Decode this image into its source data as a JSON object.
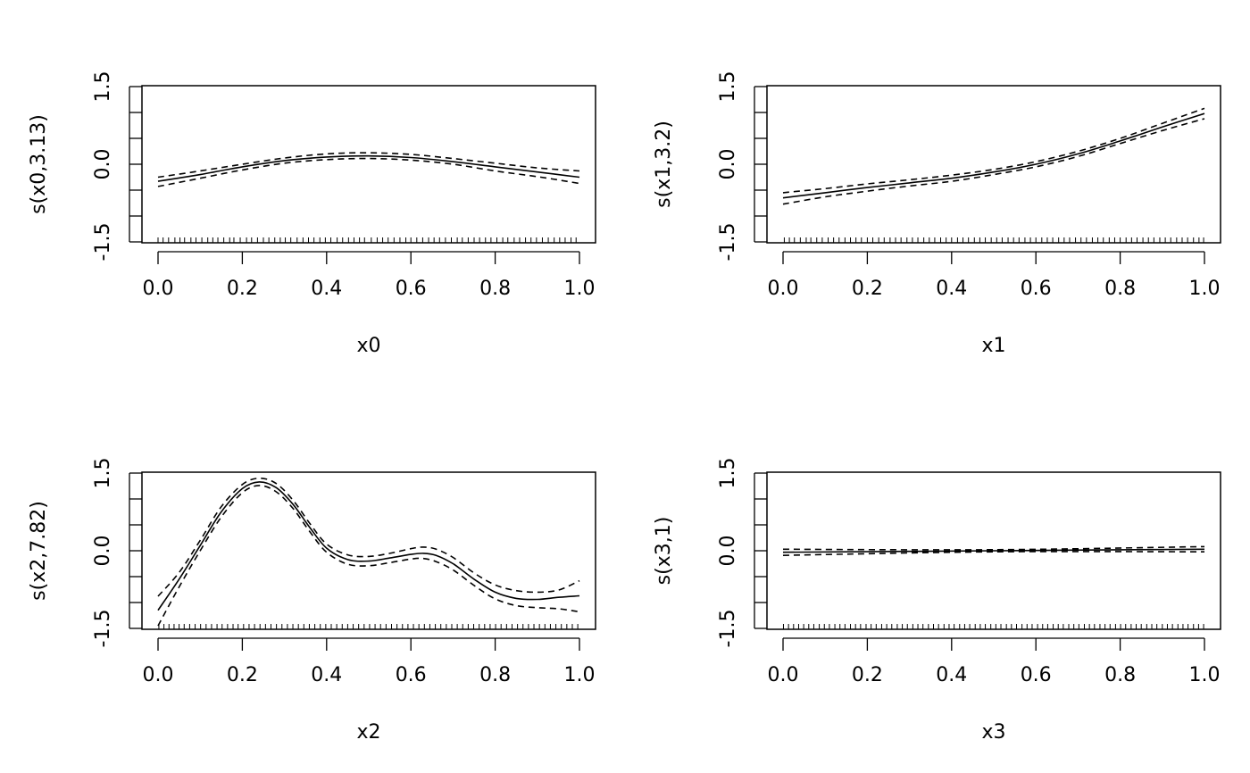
{
  "chart_data": [
    {
      "type": "line",
      "xlabel": "x0",
      "ylabel": "s(x0,3.13)",
      "xlim": [
        0.0,
        1.0
      ],
      "ylim": [
        -1.5,
        1.5
      ],
      "xticks": [
        "0.0",
        "0.2",
        "0.4",
        "0.6",
        "0.8",
        "1.0"
      ],
      "yticks": [
        "-1.5",
        "0.0",
        "1.5"
      ],
      "grid": false,
      "x": [
        0.0,
        0.1,
        0.2,
        0.3,
        0.4,
        0.5,
        0.6,
        0.7,
        0.8,
        0.9,
        1.0
      ],
      "series": [
        {
          "style": "solid",
          "values": [
            -0.33,
            -0.2,
            -0.05,
            0.07,
            0.14,
            0.16,
            0.13,
            0.05,
            -0.05,
            -0.15,
            -0.25
          ]
        },
        {
          "style": "dashed",
          "values": [
            -0.25,
            -0.13,
            0.0,
            0.12,
            0.2,
            0.22,
            0.19,
            0.11,
            0.02,
            -0.07,
            -0.13
          ]
        },
        {
          "style": "dashed",
          "values": [
            -0.43,
            -0.27,
            -0.11,
            0.02,
            0.09,
            0.11,
            0.08,
            0.0,
            -0.13,
            -0.24,
            -0.37
          ]
        }
      ],
      "rug": [
        0.0,
        0.012,
        0.025,
        0.04,
        0.052,
        0.063,
        0.078,
        0.09,
        0.104,
        0.118,
        0.13,
        0.142,
        0.156,
        0.17,
        0.18,
        0.195,
        0.21,
        0.222,
        0.236,
        0.25,
        0.263,
        0.277,
        0.29,
        0.302,
        0.315,
        0.33,
        0.344,
        0.357,
        0.37,
        0.384,
        0.397,
        0.41,
        0.425,
        0.438,
        0.452,
        0.465,
        0.478,
        0.49,
        0.506,
        0.52,
        0.533,
        0.546,
        0.56,
        0.574,
        0.588,
        0.6,
        0.614,
        0.628,
        0.642,
        0.655,
        0.668,
        0.682,
        0.696,
        0.71,
        0.722,
        0.736,
        0.75,
        0.763,
        0.777,
        0.79,
        0.804,
        0.818,
        0.83,
        0.845,
        0.858,
        0.872,
        0.885,
        0.898,
        0.912,
        0.926,
        0.94,
        0.953,
        0.966,
        0.98,
        0.992
      ]
    },
    {
      "type": "line",
      "xlabel": "x1",
      "ylabel": "s(x1,3.2)",
      "xlim": [
        0.0,
        1.0
      ],
      "ylim": [
        -1.5,
        1.5
      ],
      "xticks": [
        "0.0",
        "0.2",
        "0.4",
        "0.6",
        "0.8",
        "1.0"
      ],
      "yticks": [
        "-1.5",
        "0.0",
        "1.5"
      ],
      "grid": false,
      "x": [
        0.0,
        0.1,
        0.2,
        0.3,
        0.4,
        0.5,
        0.6,
        0.7,
        0.8,
        0.9,
        1.0
      ],
      "series": [
        {
          "style": "solid",
          "values": [
            -0.65,
            -0.55,
            -0.45,
            -0.36,
            -0.27,
            -0.15,
            0.0,
            0.2,
            0.45,
            0.72,
            0.98
          ]
        },
        {
          "style": "dashed",
          "values": [
            -0.55,
            -0.47,
            -0.38,
            -0.3,
            -0.21,
            -0.1,
            0.05,
            0.25,
            0.5,
            0.79,
            1.08
          ]
        },
        {
          "style": "dashed",
          "values": [
            -0.77,
            -0.63,
            -0.52,
            -0.42,
            -0.33,
            -0.2,
            -0.05,
            0.15,
            0.4,
            0.65,
            0.88
          ]
        }
      ],
      "rug": [
        0.003,
        0.015,
        0.027,
        0.041,
        0.055,
        0.066,
        0.08,
        0.093,
        0.107,
        0.12,
        0.133,
        0.147,
        0.16,
        0.173,
        0.186,
        0.2,
        0.213,
        0.227,
        0.24,
        0.254,
        0.267,
        0.28,
        0.294,
        0.307,
        0.32,
        0.334,
        0.347,
        0.36,
        0.374,
        0.387,
        0.4,
        0.414,
        0.427,
        0.44,
        0.454,
        0.467,
        0.48,
        0.494,
        0.507,
        0.52,
        0.534,
        0.547,
        0.56,
        0.574,
        0.587,
        0.6,
        0.614,
        0.627,
        0.64,
        0.654,
        0.667,
        0.68,
        0.694,
        0.707,
        0.72,
        0.734,
        0.747,
        0.76,
        0.774,
        0.787,
        0.8,
        0.814,
        0.827,
        0.84,
        0.854,
        0.867,
        0.88,
        0.894,
        0.907,
        0.92,
        0.934,
        0.947,
        0.96,
        0.974,
        0.987,
        0.998
      ]
    },
    {
      "type": "line",
      "xlabel": "x2",
      "ylabel": "s(x2,7.82)",
      "xlim": [
        0.0,
        1.0
      ],
      "ylim": [
        -1.5,
        1.5
      ],
      "xticks": [
        "0.0",
        "0.2",
        "0.4",
        "0.6",
        "0.8",
        "1.0"
      ],
      "yticks": [
        "-1.5",
        "0.0",
        "1.5"
      ],
      "grid": false,
      "x": [
        0.0,
        0.05,
        0.1,
        0.15,
        0.2,
        0.24,
        0.28,
        0.32,
        0.36,
        0.4,
        0.45,
        0.5,
        0.55,
        0.6,
        0.63,
        0.66,
        0.7,
        0.75,
        0.8,
        0.85,
        0.9,
        0.95,
        1.0
      ],
      "series": [
        {
          "style": "solid",
          "values": [
            -1.15,
            -0.55,
            0.1,
            0.75,
            1.2,
            1.33,
            1.22,
            0.9,
            0.45,
            0.05,
            -0.17,
            -0.2,
            -0.14,
            -0.07,
            -0.05,
            -0.09,
            -0.25,
            -0.55,
            -0.8,
            -0.92,
            -0.94,
            -0.9,
            -0.87
          ]
        },
        {
          "style": "dashed",
          "values": [
            -0.88,
            -0.42,
            0.2,
            0.85,
            1.28,
            1.4,
            1.3,
            0.98,
            0.53,
            0.13,
            -0.08,
            -0.11,
            -0.05,
            0.04,
            0.07,
            0.03,
            -0.13,
            -0.43,
            -0.66,
            -0.77,
            -0.8,
            -0.76,
            -0.58
          ]
        },
        {
          "style": "dashed",
          "values": [
            -1.45,
            -0.7,
            0.0,
            0.65,
            1.12,
            1.26,
            1.14,
            0.82,
            0.37,
            -0.03,
            -0.26,
            -0.29,
            -0.23,
            -0.16,
            -0.15,
            -0.21,
            -0.37,
            -0.67,
            -0.93,
            -1.06,
            -1.1,
            -1.12,
            -1.18
          ]
        }
      ],
      "rug": [
        0.002,
        0.014,
        0.026,
        0.038,
        0.05,
        0.062,
        0.075,
        0.088,
        0.101,
        0.114,
        0.127,
        0.14,
        0.152,
        0.165,
        0.178,
        0.19,
        0.203,
        0.216,
        0.229,
        0.242,
        0.255,
        0.268,
        0.281,
        0.294,
        0.307,
        0.32,
        0.333,
        0.346,
        0.359,
        0.372,
        0.385,
        0.398,
        0.411,
        0.424,
        0.437,
        0.45,
        0.463,
        0.476,
        0.489,
        0.502,
        0.515,
        0.528,
        0.541,
        0.554,
        0.567,
        0.58,
        0.593,
        0.606,
        0.619,
        0.632,
        0.645,
        0.658,
        0.671,
        0.684,
        0.697,
        0.71,
        0.723,
        0.736,
        0.749,
        0.762,
        0.775,
        0.788,
        0.801,
        0.814,
        0.827,
        0.84,
        0.853,
        0.866,
        0.879,
        0.892,
        0.905,
        0.918,
        0.931,
        0.944,
        0.957,
        0.97,
        0.983,
        0.996
      ]
    },
    {
      "type": "line",
      "xlabel": "x3",
      "ylabel": "s(x3,1)",
      "xlim": [
        0.0,
        1.0
      ],
      "ylim": [
        -1.5,
        1.5
      ],
      "xticks": [
        "0.0",
        "0.2",
        "0.4",
        "0.6",
        "0.8",
        "1.0"
      ],
      "yticks": [
        "-1.5",
        "0.0",
        "1.5"
      ],
      "grid": false,
      "x": [
        0.0,
        0.5,
        1.0
      ],
      "series": [
        {
          "style": "solid",
          "values": [
            -0.03,
            0.0,
            0.03
          ]
        },
        {
          "style": "dashed",
          "values": [
            0.03,
            0.02,
            0.08
          ]
        },
        {
          "style": "dashed",
          "values": [
            -0.09,
            -0.02,
            -0.02
          ]
        }
      ],
      "rug": [
        0.001,
        0.013,
        0.025,
        0.037,
        0.049,
        0.061,
        0.073,
        0.086,
        0.098,
        0.11,
        0.123,
        0.135,
        0.147,
        0.16,
        0.172,
        0.184,
        0.197,
        0.209,
        0.221,
        0.234,
        0.246,
        0.258,
        0.271,
        0.283,
        0.295,
        0.308,
        0.32,
        0.332,
        0.345,
        0.357,
        0.369,
        0.382,
        0.394,
        0.406,
        0.419,
        0.431,
        0.443,
        0.456,
        0.468,
        0.48,
        0.493,
        0.505,
        0.517,
        0.53,
        0.542,
        0.554,
        0.567,
        0.579,
        0.591,
        0.604,
        0.616,
        0.628,
        0.641,
        0.653,
        0.665,
        0.678,
        0.69,
        0.702,
        0.715,
        0.727,
        0.739,
        0.752,
        0.764,
        0.776,
        0.789,
        0.801,
        0.813,
        0.826,
        0.838,
        0.85,
        0.863,
        0.875,
        0.887,
        0.9,
        0.912,
        0.924,
        0.937,
        0.949,
        0.961,
        0.974,
        0.986,
        0.998
      ]
    }
  ]
}
